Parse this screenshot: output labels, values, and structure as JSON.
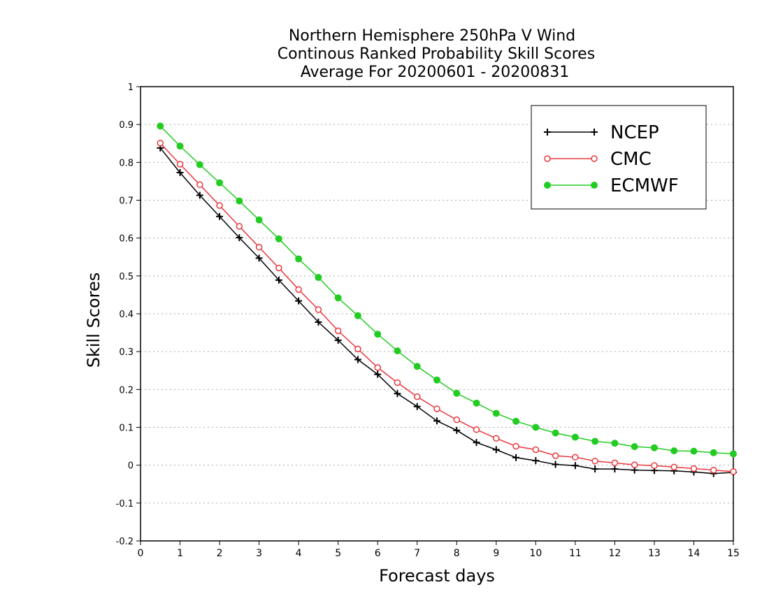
{
  "chart_data": {
    "type": "line",
    "title": [
      "Northern Hemisphere 250hPa V Wind",
      "Continous Ranked Probability Skill Scores",
      "Average For 20200601 - 20200831"
    ],
    "xlabel": "Forecast days",
    "ylabel": "Skill Scores",
    "xlim": [
      0,
      15
    ],
    "ylim": [
      -0.2,
      1
    ],
    "xticks": [
      0,
      1,
      2,
      3,
      4,
      5,
      6,
      7,
      8,
      9,
      10,
      11,
      12,
      13,
      14,
      15
    ],
    "yticks": [
      -0.2,
      -0.1,
      0,
      0.1,
      0.2,
      0.3,
      0.4,
      0.5,
      0.6,
      0.7,
      0.8,
      0.9,
      1
    ],
    "ytick_labels": [
      "-0.2",
      "-0.1",
      "0",
      "0.1",
      "0.2",
      "0.3",
      "0.4",
      "0.5",
      "0.6",
      "0.7",
      "0.8",
      "0.9",
      "1"
    ],
    "grid": "horizontal dotted",
    "legend_position": "top-right",
    "x": [
      0.5,
      1,
      1.5,
      2,
      2.5,
      3,
      3.5,
      4,
      4.5,
      5,
      5.5,
      6,
      6.5,
      7,
      7.5,
      8,
      8.5,
      9,
      9.5,
      10,
      10.5,
      11,
      11.5,
      12,
      12.5,
      13,
      13.5,
      14,
      14.5,
      15
    ],
    "series": [
      {
        "name": "NCEP",
        "color": "#000000",
        "marker": "plus",
        "values": [
          0.838,
          0.773,
          0.713,
          0.657,
          0.601,
          0.547,
          0.489,
          0.434,
          0.378,
          0.33,
          0.279,
          0.24,
          0.189,
          0.155,
          0.117,
          0.092,
          0.06,
          0.041,
          0.02,
          0.012,
          0.002,
          -0.001,
          -0.01,
          -0.01,
          -0.013,
          -0.014,
          -0.015,
          -0.018,
          -0.022,
          -0.019
        ]
      },
      {
        "name": "CMC",
        "color": "#e8383d",
        "marker": "open-circle",
        "values": [
          0.851,
          0.795,
          0.741,
          0.686,
          0.631,
          0.576,
          0.521,
          0.464,
          0.411,
          0.355,
          0.307,
          0.258,
          0.218,
          0.181,
          0.149,
          0.12,
          0.094,
          0.071,
          0.05,
          0.041,
          0.025,
          0.021,
          0.011,
          0.006,
          0.001,
          -0.001,
          -0.005,
          -0.009,
          -0.013,
          -0.017
        ]
      },
      {
        "name": "ECMWF",
        "color": "#22cc22",
        "marker": "filled-circle",
        "values": [
          0.896,
          0.843,
          0.794,
          0.746,
          0.698,
          0.648,
          0.598,
          0.545,
          0.496,
          0.442,
          0.395,
          0.346,
          0.302,
          0.261,
          0.225,
          0.19,
          0.164,
          0.137,
          0.116,
          0.1,
          0.085,
          0.074,
          0.063,
          0.058,
          0.049,
          0.046,
          0.038,
          0.037,
          0.033,
          0.03
        ]
      }
    ]
  }
}
